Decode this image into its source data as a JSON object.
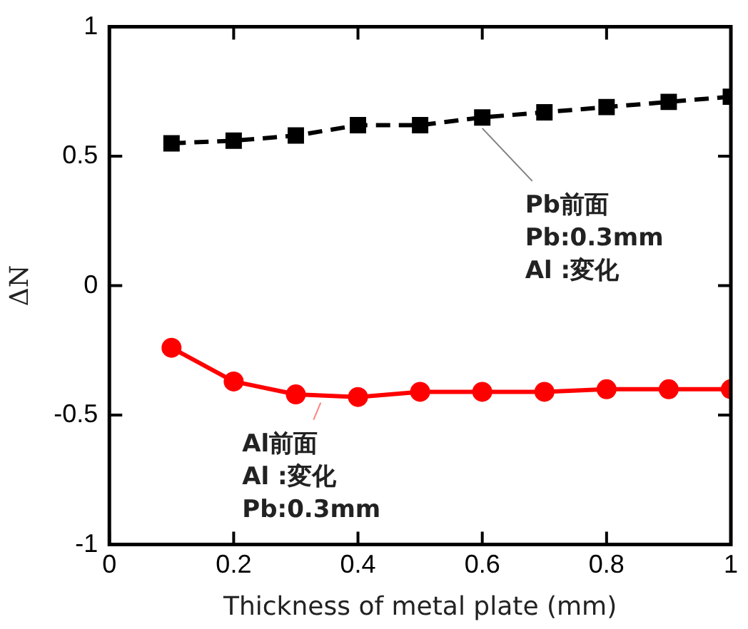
{
  "chart_data": {
    "type": "line",
    "xlabel": "Thickness of metal plate (mm)",
    "ylabel": "ΔN",
    "x": [
      0.1,
      0.2,
      0.3,
      0.4,
      0.5,
      0.6,
      0.7,
      0.8,
      0.9,
      1.0
    ],
    "series": [
      {
        "color": "#000000",
        "marker": "square",
        "line_style": "dashed",
        "values": [
          0.55,
          0.56,
          0.58,
          0.62,
          0.62,
          0.65,
          0.67,
          0.69,
          0.71,
          0.73
        ]
      },
      {
        "color": "#ff0000",
        "marker": "circle",
        "line_style": "solid",
        "values": [
          -0.24,
          -0.37,
          -0.42,
          -0.43,
          -0.41,
          -0.41,
          -0.41,
          -0.4,
          -0.4,
          -0.4
        ]
      }
    ],
    "xlim": [
      0,
      1
    ],
    "xticks": [
      0,
      0.2,
      0.4,
      0.6,
      0.8,
      1
    ],
    "ylim": [
      -1,
      1
    ],
    "yticks": [
      -1,
      -0.5,
      0,
      0.5,
      1
    ],
    "grid": false,
    "legend": false,
    "annotations": [
      {
        "text": "Pb前面\nPb:0.3mm\nAl :変化",
        "x": 0.6,
        "y": 0.63
      },
      {
        "text": "Al前面\nAl :変化\nPb:0.3mm",
        "x": 0.34,
        "y": -0.43
      }
    ]
  }
}
